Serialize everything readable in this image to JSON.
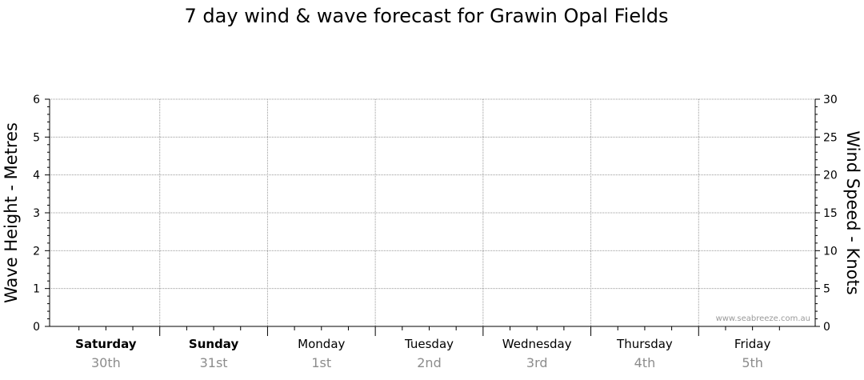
{
  "chart_data": {
    "type": "line",
    "title": "7 day wind & wave forecast for Grawin Opal Fields",
    "y_left": {
      "label": "Wave Height - Metres",
      "range": [
        0,
        6
      ],
      "ticks": [
        0,
        1,
        2,
        3,
        4,
        5,
        6
      ]
    },
    "y_right": {
      "label": "Wind Speed - Knots",
      "range": [
        0,
        30
      ],
      "ticks": [
        0,
        5,
        10,
        15,
        20,
        25,
        30
      ]
    },
    "days": [
      {
        "day": "Saturday",
        "date": "30th",
        "bold": true
      },
      {
        "day": "Sunday",
        "date": "31st",
        "bold": true
      },
      {
        "day": "Monday",
        "date": "1st",
        "bold": false
      },
      {
        "day": "Tuesday",
        "date": "2nd",
        "bold": false
      },
      {
        "day": "Wednesday",
        "date": "3rd",
        "bold": false
      },
      {
        "day": "Thursday",
        "date": "4th",
        "bold": false
      },
      {
        "day": "Friday",
        "date": "5th",
        "bold": false
      }
    ],
    "series": [],
    "grid": true
  },
  "watermark": "www.seabreeze.com.au",
  "colors": {
    "grid": "#999999",
    "axis": "#000000",
    "date_text": "#8c8c8c"
  }
}
